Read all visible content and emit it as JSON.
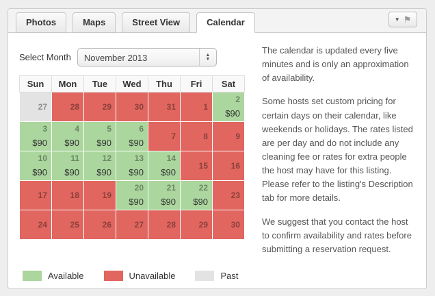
{
  "tabs": [
    {
      "label": "Photos",
      "active": false
    },
    {
      "label": "Maps",
      "active": false
    },
    {
      "label": "Street View",
      "active": false
    },
    {
      "label": "Calendar",
      "active": true
    }
  ],
  "flag_button": {
    "caret": "▼",
    "flag": "⚑"
  },
  "month_selector": {
    "label": "Select Month",
    "value": "November 2013",
    "up_arrow": "▲",
    "down_arrow": "▼"
  },
  "calendar": {
    "day_headers": [
      "Sun",
      "Mon",
      "Tue",
      "Wed",
      "Thu",
      "Fri",
      "Sat"
    ],
    "weeks": [
      [
        {
          "day": "27",
          "status": "past"
        },
        {
          "day": "28",
          "status": "unavailable"
        },
        {
          "day": "29",
          "status": "unavailable"
        },
        {
          "day": "30",
          "status": "unavailable"
        },
        {
          "day": "31",
          "status": "unavailable"
        },
        {
          "day": "1",
          "status": "unavailable"
        },
        {
          "day": "2",
          "status": "available",
          "price": "$90"
        }
      ],
      [
        {
          "day": "3",
          "status": "available",
          "price": "$90"
        },
        {
          "day": "4",
          "status": "available",
          "price": "$90"
        },
        {
          "day": "5",
          "status": "available",
          "price": "$90"
        },
        {
          "day": "6",
          "status": "available",
          "price": "$90"
        },
        {
          "day": "7",
          "status": "unavailable"
        },
        {
          "day": "8",
          "status": "unavailable"
        },
        {
          "day": "9",
          "status": "unavailable"
        }
      ],
      [
        {
          "day": "10",
          "status": "available",
          "price": "$90"
        },
        {
          "day": "11",
          "status": "available",
          "price": "$90"
        },
        {
          "day": "12",
          "status": "available",
          "price": "$90"
        },
        {
          "day": "13",
          "status": "available",
          "price": "$90"
        },
        {
          "day": "14",
          "status": "available",
          "price": "$90"
        },
        {
          "day": "15",
          "status": "unavailable"
        },
        {
          "day": "16",
          "status": "unavailable"
        }
      ],
      [
        {
          "day": "17",
          "status": "unavailable"
        },
        {
          "day": "18",
          "status": "unavailable"
        },
        {
          "day": "19",
          "status": "unavailable"
        },
        {
          "day": "20",
          "status": "available",
          "price": "$90"
        },
        {
          "day": "21",
          "status": "available",
          "price": "$90"
        },
        {
          "day": "22",
          "status": "available",
          "price": "$90"
        },
        {
          "day": "23",
          "status": "unavailable"
        }
      ],
      [
        {
          "day": "24",
          "status": "unavailable"
        },
        {
          "day": "25",
          "status": "unavailable"
        },
        {
          "day": "26",
          "status": "unavailable"
        },
        {
          "day": "27",
          "status": "unavailable"
        },
        {
          "day": "28",
          "status": "unavailable"
        },
        {
          "day": "29",
          "status": "unavailable"
        },
        {
          "day": "30",
          "status": "unavailable"
        }
      ]
    ]
  },
  "legend": [
    {
      "label": "Available",
      "color": "#abd69e"
    },
    {
      "label": "Unavailable",
      "color": "#e0665f"
    },
    {
      "label": "Past",
      "color": "#e3e3e3"
    }
  ],
  "info_paragraphs": {
    "p1": "The calendar is updated every five minutes and is only an approximation of availability.",
    "p2": "Some hosts set custom pricing for certain days on their calendar, like weekends or holidays. The rates listed are per day and do not include any cleaning fee or rates for extra people the host may have for this listing. Please refer to the listing's Description tab for more details.",
    "p3": "We suggest that you contact the host to confirm availability and rates before submitting a reservation request."
  }
}
